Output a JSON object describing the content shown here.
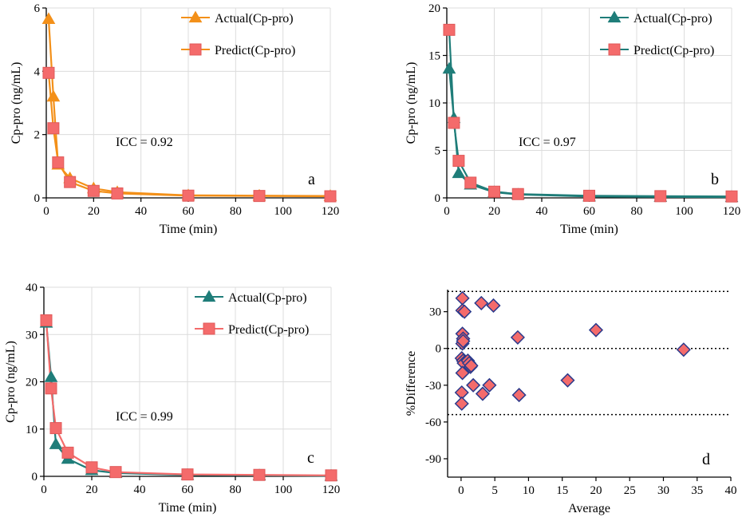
{
  "chart_data": [
    {
      "panel": "a",
      "type": "line",
      "title": "",
      "xlabel": "Time (min)",
      "ylabel": "Cp-pro (ng/mL)",
      "xlim": [
        0,
        120
      ],
      "ylim": [
        0,
        6
      ],
      "xticks": [
        0,
        20,
        40,
        60,
        80,
        100,
        120
      ],
      "yticks": [
        0,
        2,
        4,
        6
      ],
      "annotation": "ICC = 0.92",
      "legend_position": "top-right",
      "series": [
        {
          "name": "Actual(Cp-pro)",
          "marker": "triangle",
          "color": "#F39019",
          "line_color": "#F39019",
          "x": [
            1,
            3,
            5,
            10,
            20,
            30,
            60,
            90,
            120
          ],
          "y": [
            5.65,
            3.2,
            1.05,
            0.62,
            0.3,
            0.18,
            0.08,
            0.07,
            0.06
          ]
        },
        {
          "name": "Predict(Cp-pro)",
          "marker": "square",
          "color": "#F46B6B",
          "line_color": "#F39019",
          "x": [
            1,
            3,
            5,
            10,
            20,
            30,
            60,
            90,
            120
          ],
          "y": [
            3.95,
            2.2,
            1.12,
            0.5,
            0.22,
            0.14,
            0.07,
            0.06,
            0.05
          ]
        }
      ]
    },
    {
      "panel": "b",
      "type": "line",
      "title": "",
      "xlabel": "Time (min)",
      "ylabel": "Cp-pro (ng/mL)",
      "xlim": [
        0,
        120
      ],
      "ylim": [
        0,
        20
      ],
      "xticks": [
        0,
        20,
        40,
        60,
        80,
        100,
        120
      ],
      "yticks": [
        0,
        5,
        10,
        15,
        20
      ],
      "annotation": "ICC = 0.97",
      "legend_position": "top-right",
      "series": [
        {
          "name": "Actual(Cp-pro)",
          "marker": "triangle",
          "color": "#1F7D79",
          "line_color": "#1F7D79",
          "x": [
            1,
            3,
            5,
            10,
            20,
            30,
            60,
            90,
            120
          ],
          "y": [
            13.6,
            8.4,
            2.6,
            1.4,
            0.6,
            0.35,
            0.15,
            0.1,
            0.08
          ]
        },
        {
          "name": "Predict(Cp-pro)",
          "marker": "square",
          "color": "#F46B6B",
          "line_color": "#1F7D79",
          "x": [
            1,
            3,
            5,
            10,
            20,
            30,
            60,
            90,
            120
          ],
          "y": [
            17.7,
            7.9,
            3.9,
            1.6,
            0.65,
            0.4,
            0.22,
            0.18,
            0.15
          ]
        }
      ]
    },
    {
      "panel": "c",
      "type": "line",
      "title": "",
      "xlabel": "Time (min)",
      "ylabel": "Cp-pro (ng/mL)",
      "xlim": [
        0,
        120
      ],
      "ylim": [
        0,
        40
      ],
      "xticks": [
        0,
        20,
        40,
        60,
        80,
        100,
        120
      ],
      "yticks": [
        0,
        10,
        20,
        30,
        40
      ],
      "annotation": "ICC = 0.99",
      "legend_position": "top-right",
      "series": [
        {
          "name": "Actual(Cp-pro)",
          "marker": "triangle",
          "color": "#1F7D79",
          "line_color": "#1F7D79",
          "x": [
            1,
            3,
            5,
            10,
            20,
            30,
            60,
            90,
            120
          ],
          "y": [
            32.5,
            21.0,
            6.8,
            3.7,
            1.3,
            0.7,
            0.3,
            0.2,
            0.1
          ]
        },
        {
          "name": "Predict(Cp-pro)",
          "marker": "square",
          "color": "#F46B6B",
          "line_color": "#F46B6B",
          "x": [
            1,
            3,
            5,
            10,
            20,
            30,
            60,
            90,
            120
          ],
          "y": [
            33.0,
            18.6,
            10.2,
            5.0,
            1.9,
            0.9,
            0.4,
            0.3,
            0.2
          ]
        }
      ]
    },
    {
      "panel": "d",
      "type": "scatter",
      "title": "",
      "xlabel": "Average",
      "ylabel": "%Difference",
      "xlim": [
        -2,
        40
      ],
      "ylim": [
        -105,
        48
      ],
      "xticks": [
        0,
        5,
        10,
        15,
        20,
        25,
        30,
        35,
        40
      ],
      "yticks": [
        -90,
        -60,
        -30,
        0,
        30
      ],
      "reference_lines": [
        46.5,
        0,
        -54
      ],
      "marker": "diamond",
      "color": "#F46B6B",
      "edge_color": "#2B3A8C",
      "points": {
        "x": [
          0.2,
          0.2,
          0.5,
          3.0,
          4.8,
          0.2,
          0.3,
          0.2,
          0.3,
          8.4,
          20.0,
          33.0,
          0.1,
          0.3,
          0.4,
          1.0,
          1.2,
          1.4,
          1.5,
          0.2,
          1.8,
          4.2,
          3.2,
          8.6,
          15.8,
          0.1,
          0.1
        ],
        "y": [
          41,
          31,
          30,
          37,
          35,
          12,
          8,
          4,
          6,
          9,
          15,
          -1,
          -8,
          -10,
          -12,
          -10,
          -12,
          -15,
          -14,
          -20,
          -30,
          -30,
          -37,
          -38,
          -26,
          -36,
          -45
        ]
      }
    }
  ]
}
